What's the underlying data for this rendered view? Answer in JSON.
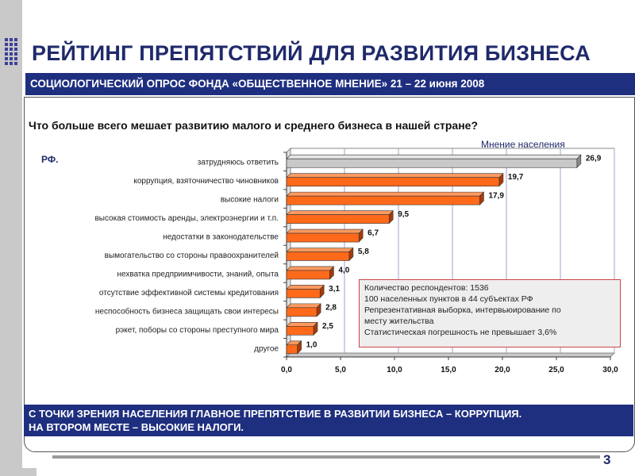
{
  "slide": {
    "title": "РЕЙТИНГ ПРЕПЯТСТВИЙ ДЛЯ РАЗВИТИЯ БИЗНЕСА",
    "subtitle": "СОЦИОЛОГИЧЕСКИЙ ОПРОС ФОНДА «ОБЩЕСТВЕННОЕ МНЕНИЕ» 21 – 22 июня 2008",
    "question": "Что больше всего мешает развитию малого и среднего бизнеса в нашей стране?",
    "conclusion_line1": "С ТОЧКИ ЗРЕНИЯ НАСЕЛЕНИЯ ГЛАВНОЕ ПРЕПЯТСТВИЕ В РАЗВИТИИ БИЗНЕСА – КОРРУПЦИЯ.",
    "conclusion_line2": "НА ВТОРОМ МЕСТЕ – ВЫСОКИЕ НАЛОГИ.",
    "page_number": "3"
  },
  "stats_box": {
    "lines": [
      "Количество респондентов: 1536",
      "100 населенных пунктов в  44 субъектах РФ",
      "Репрезентативная выборка, интервьюирование по",
      "месту жительства",
      "Статистическая погрешность не превышает 3,6%"
    ]
  },
  "chart_data": {
    "type": "bar",
    "orientation": "horizontal",
    "corner_label": "РФ.",
    "legend_label": "Мнение населения",
    "categories": [
      "затрудняюсь ответить",
      "коррупция, взяточничество чиновников",
      "высокие налоги",
      "высокая стоимость аренды, электроэнергии и т.п.",
      "недостатки в законодательстве",
      "вымогательство со стороны правоохранителей",
      "нехватка предприимчивости, знаний, опыта",
      "отсутствие эффективной системы кредитования",
      "неспособность бизнеса защищать свои интересы",
      "рэкет, поборы со стороны преступного мира",
      "другое"
    ],
    "values": [
      26.9,
      19.7,
      17.9,
      9.5,
      6.7,
      5.8,
      4.0,
      3.1,
      2.8,
      2.5,
      1.0
    ],
    "value_labels": [
      "26,9",
      "19,7",
      "17,9",
      "9,5",
      "6,7",
      "5,8",
      "4,0",
      "3,1",
      "2,8",
      "2,5",
      "1,0"
    ],
    "bar_colors": [
      "#c8c8c8",
      "#ff6a1a",
      "#ff6a1a",
      "#ff6a1a",
      "#ff6a1a",
      "#ff6a1a",
      "#ff6a1a",
      "#ff6a1a",
      "#ff6a1a",
      "#ff6a1a",
      "#ff6a1a"
    ],
    "xlim": [
      0,
      30
    ],
    "xticks": [
      0,
      5,
      10,
      15,
      20,
      25,
      30
    ],
    "xtick_labels": [
      "0,0",
      "5,0",
      "10,0",
      "15,0",
      "20,0",
      "25,0",
      "30,0"
    ],
    "grid": true
  }
}
